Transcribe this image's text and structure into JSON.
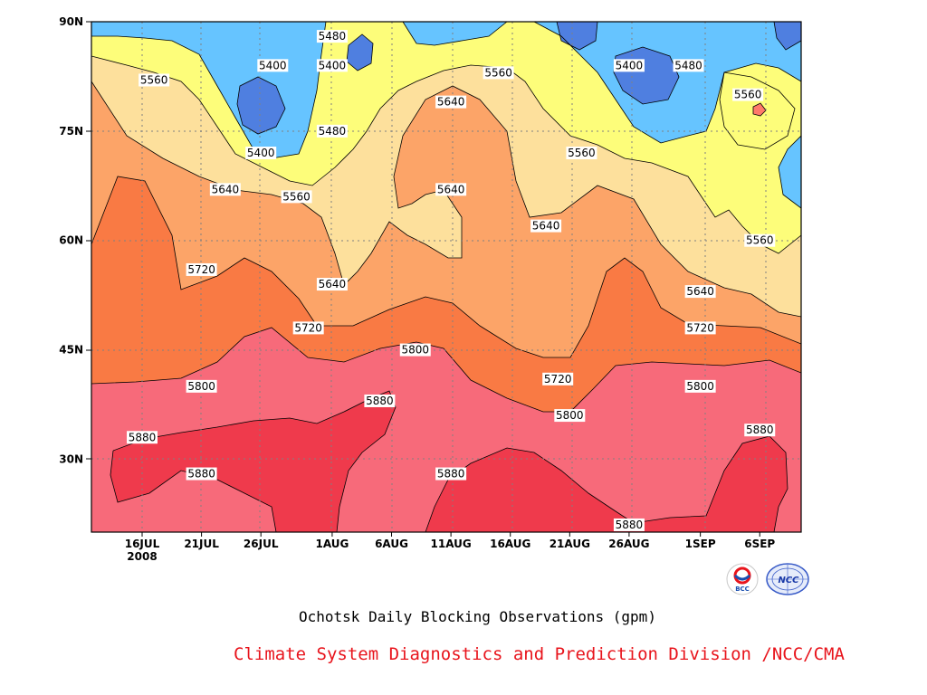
{
  "title": "Ochotsk Daily Blocking Observations (gpm)",
  "credit": "Climate System Diagnostics and Prediction Division /NCC/CMA",
  "logos": [
    {
      "name": "bcc-logo",
      "text": "BCC"
    },
    {
      "name": "ncc-logo",
      "text": "NCC"
    }
  ],
  "chart_data": {
    "type": "heatmap",
    "subtype": "filled-contour time-latitude",
    "title": "Ochotsk Daily Blocking Observations (gpm)",
    "xlabel": "",
    "ylabel": "",
    "x_ticks": [
      "16JUL",
      "21JUL",
      "26JUL",
      "1AUG",
      "6AUG",
      "11AUG",
      "16AUG",
      "21AUG",
      "26AUG",
      "1SEP",
      "6SEP"
    ],
    "x_year_label": "2008",
    "y_ticks": [
      "30N",
      "45N",
      "60N",
      "75N",
      "90N"
    ],
    "ylim": [
      20,
      90
    ],
    "contour_levels": [
      5400,
      5480,
      5560,
      5640,
      5720,
      5800,
      5880
    ],
    "colors": {
      "below_5400": "#4f7fe0",
      "5400_5480": "#66c4ff",
      "5480_5560": "#fdfd7a",
      "5560_5640": "#fde09c",
      "5640_5720": "#fca468",
      "5720_5800": "#f97a44",
      "5800_5880": "#f76a7a",
      "above_5880": "#ef3a4c",
      "warm_core": "#ff7a6a",
      "grid": "#808080"
    },
    "contour_labels": [
      {
        "value": "5480",
        "date": "1AUG",
        "lat": 88
      },
      {
        "value": "5400",
        "date": "27JUL",
        "lat": 84
      },
      {
        "value": "5400",
        "date": "1AUG",
        "lat": 84
      },
      {
        "value": "5400",
        "date": "26AUG",
        "lat": 84
      },
      {
        "value": "5480",
        "date": "31AUG",
        "lat": 84
      },
      {
        "value": "5560",
        "date": "17JUL",
        "lat": 82
      },
      {
        "value": "5560",
        "date": "15AUG",
        "lat": 83
      },
      {
        "value": "5560",
        "date": "5SEP",
        "lat": 80
      },
      {
        "value": "5640",
        "date": "11AUG",
        "lat": 79
      },
      {
        "value": "5400",
        "date": "26JUL",
        "lat": 72
      },
      {
        "value": "5480",
        "date": "1AUG",
        "lat": 75
      },
      {
        "value": "5560",
        "date": "22AUG",
        "lat": 72
      },
      {
        "value": "5640",
        "date": "23JUL",
        "lat": 67
      },
      {
        "value": "5560",
        "date": "29JUL",
        "lat": 66
      },
      {
        "value": "5640",
        "date": "11AUG",
        "lat": 67
      },
      {
        "value": "5640",
        "date": "19AUG",
        "lat": 62
      },
      {
        "value": "5560",
        "date": "6SEP",
        "lat": 60
      },
      {
        "value": "5720",
        "date": "21JUL",
        "lat": 56
      },
      {
        "value": "5640",
        "date": "1AUG",
        "lat": 54
      },
      {
        "value": "5640",
        "date": "1SEP",
        "lat": 53
      },
      {
        "value": "5720",
        "date": "30JUL",
        "lat": 48
      },
      {
        "value": "5720",
        "date": "1SEP",
        "lat": 48
      },
      {
        "value": "5800",
        "date": "8AUG",
        "lat": 45
      },
      {
        "value": "5720",
        "date": "20AUG",
        "lat": 41
      },
      {
        "value": "5800",
        "date": "21JUL",
        "lat": 40
      },
      {
        "value": "5800",
        "date": "1SEP",
        "lat": 40
      },
      {
        "value": "5880",
        "date": "5AUG",
        "lat": 38
      },
      {
        "value": "5800",
        "date": "21AUG",
        "lat": 36
      },
      {
        "value": "5880",
        "date": "6SEP",
        "lat": 34
      },
      {
        "value": "5880",
        "date": "16JUL",
        "lat": 33
      },
      {
        "value": "5880",
        "date": "21JUL",
        "lat": 28
      },
      {
        "value": "5880",
        "date": "11AUG",
        "lat": 28
      },
      {
        "value": "5880",
        "date": "26AUG",
        "lat": 21
      }
    ],
    "grid": true,
    "legend": "none"
  }
}
